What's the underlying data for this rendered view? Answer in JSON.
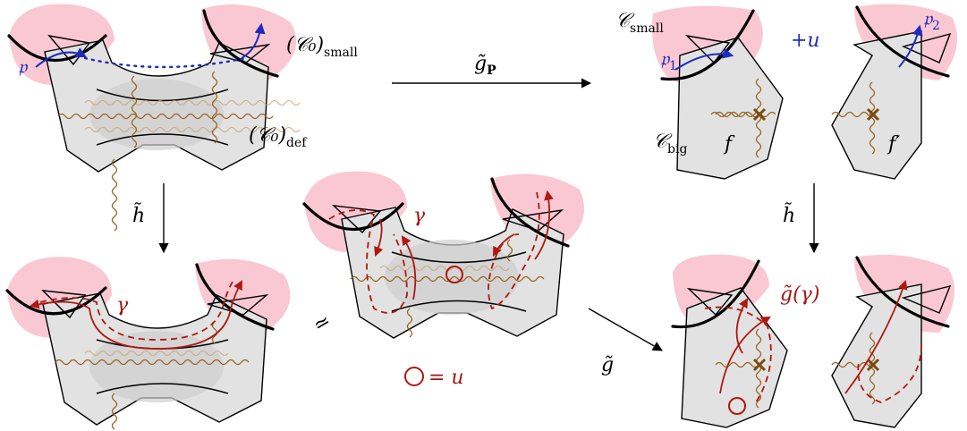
{
  "labels": {
    "c0_small": "(𝒞₀)",
    "c0_small_sub": "small",
    "c0_def": "(𝒞₀)",
    "c0_def_sub": "def",
    "p": "𝔭",
    "g_P": "g̃",
    "g_P_sub": "P",
    "c_small": "𝒞",
    "c_small_sub": "small",
    "c_big": "𝒞",
    "c_big_sub": "big",
    "p1": "𝔭",
    "p1_sub": "1",
    "p2": "𝔭",
    "p2_sub": "2",
    "plus_u": "+u",
    "f": "f",
    "f_prime": "f′",
    "h_left": "h̃",
    "h_right": "h̃",
    "gamma_left": "γ",
    "gamma_mid": "γ",
    "simeq": "≃",
    "g_tilde": "g̃",
    "loop_eq": "= u",
    "g_gamma": "g̃(γ)"
  },
  "colors": {
    "pink": "#f9c8d3",
    "region_gray": "#e2e2e2",
    "wavy_brown": "#9a6320",
    "path_red": "#b0180f",
    "path_blue": "#1f2bbf"
  }
}
